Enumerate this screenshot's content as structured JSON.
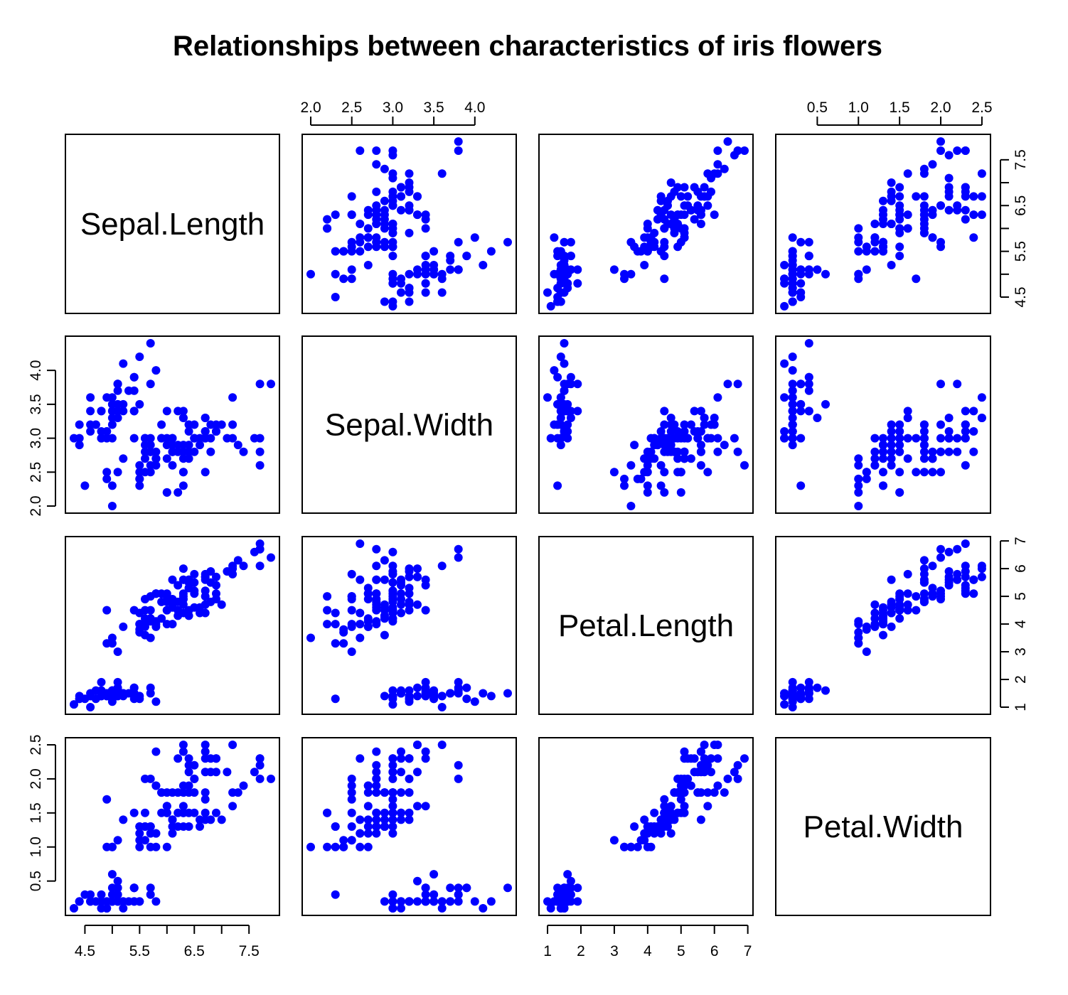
{
  "chart_data": {
    "type": "scatter",
    "title": "Relationships between characteristics of iris flowers",
    "variables": [
      "Sepal.Length",
      "Sepal.Width",
      "Petal.Length",
      "Petal.Width"
    ],
    "point_color": "#0000ff",
    "ticks": {
      "Sepal.Length": {
        "values": [
          4.5,
          5,
          5.5,
          6,
          6.5,
          7,
          7.5
        ],
        "labels": [
          "4.5",
          "",
          "5.5",
          "",
          "6.5",
          "",
          "7.5"
        ]
      },
      "Sepal.Width": {
        "values": [
          2,
          2.5,
          3,
          3.5,
          4
        ],
        "labels": [
          "2.0",
          "2.5",
          "3.0",
          "3.5",
          "4.0"
        ]
      },
      "Petal.Length": {
        "values": [
          1,
          2,
          3,
          4,
          5,
          6,
          7
        ],
        "labels": [
          "1",
          "2",
          "3",
          "4",
          "5",
          "6",
          "7"
        ]
      },
      "Petal.Width": {
        "values": [
          0.5,
          1.0,
          1.5,
          2.0,
          2.5
        ],
        "labels": [
          "0.5",
          "1.0",
          "1.5",
          "2.0",
          "2.5"
        ]
      }
    },
    "axis_ranges": {
      "Sepal.Length": [
        4.3,
        7.9
      ],
      "Sepal.Width": [
        2.0,
        4.4
      ],
      "Petal.Length": [
        1.0,
        6.9
      ],
      "Petal.Width": [
        0.1,
        2.5
      ]
    },
    "data_columns": [
      "Sepal.Length",
      "Sepal.Width",
      "Petal.Length",
      "Petal.Width"
    ],
    "data": [
      [
        5.1,
        3.5,
        1.4,
        0.2
      ],
      [
        4.9,
        3.0,
        1.4,
        0.2
      ],
      [
        4.7,
        3.2,
        1.3,
        0.2
      ],
      [
        4.6,
        3.1,
        1.5,
        0.2
      ],
      [
        5.0,
        3.6,
        1.4,
        0.2
      ],
      [
        5.4,
        3.9,
        1.7,
        0.4
      ],
      [
        4.6,
        3.4,
        1.4,
        0.3
      ],
      [
        5.0,
        3.4,
        1.5,
        0.2
      ],
      [
        4.4,
        2.9,
        1.4,
        0.2
      ],
      [
        4.9,
        3.1,
        1.5,
        0.1
      ],
      [
        5.4,
        3.7,
        1.5,
        0.2
      ],
      [
        4.8,
        3.4,
        1.6,
        0.2
      ],
      [
        4.8,
        3.0,
        1.4,
        0.1
      ],
      [
        4.3,
        3.0,
        1.1,
        0.1
      ],
      [
        5.8,
        4.0,
        1.2,
        0.2
      ],
      [
        5.7,
        4.4,
        1.5,
        0.4
      ],
      [
        5.4,
        3.9,
        1.3,
        0.4
      ],
      [
        5.1,
        3.5,
        1.4,
        0.3
      ],
      [
        5.7,
        3.8,
        1.7,
        0.3
      ],
      [
        5.1,
        3.8,
        1.5,
        0.3
      ],
      [
        5.4,
        3.4,
        1.7,
        0.2
      ],
      [
        5.1,
        3.7,
        1.5,
        0.4
      ],
      [
        4.6,
        3.6,
        1.0,
        0.2
      ],
      [
        5.1,
        3.3,
        1.7,
        0.5
      ],
      [
        4.8,
        3.4,
        1.9,
        0.2
      ],
      [
        5.0,
        3.0,
        1.6,
        0.2
      ],
      [
        5.0,
        3.4,
        1.6,
        0.4
      ],
      [
        5.2,
        3.5,
        1.5,
        0.2
      ],
      [
        5.2,
        3.4,
        1.4,
        0.2
      ],
      [
        4.7,
        3.2,
        1.6,
        0.2
      ],
      [
        4.8,
        3.1,
        1.6,
        0.2
      ],
      [
        5.4,
        3.4,
        1.5,
        0.4
      ],
      [
        5.2,
        4.1,
        1.5,
        0.1
      ],
      [
        5.5,
        4.2,
        1.4,
        0.2
      ],
      [
        4.9,
        3.1,
        1.5,
        0.2
      ],
      [
        5.0,
        3.2,
        1.2,
        0.2
      ],
      [
        5.5,
        3.5,
        1.3,
        0.2
      ],
      [
        4.9,
        3.6,
        1.4,
        0.1
      ],
      [
        4.4,
        3.0,
        1.3,
        0.2
      ],
      [
        5.1,
        3.4,
        1.5,
        0.2
      ],
      [
        5.0,
        3.5,
        1.3,
        0.3
      ],
      [
        4.5,
        2.3,
        1.3,
        0.3
      ],
      [
        4.4,
        3.2,
        1.3,
        0.2
      ],
      [
        5.0,
        3.5,
        1.6,
        0.6
      ],
      [
        5.1,
        3.8,
        1.9,
        0.4
      ],
      [
        4.8,
        3.0,
        1.4,
        0.3
      ],
      [
        5.1,
        3.8,
        1.6,
        0.2
      ],
      [
        4.6,
        3.2,
        1.4,
        0.2
      ],
      [
        5.3,
        3.7,
        1.5,
        0.2
      ],
      [
        5.0,
        3.3,
        1.4,
        0.2
      ],
      [
        7.0,
        3.2,
        4.7,
        1.4
      ],
      [
        6.4,
        3.2,
        4.5,
        1.5
      ],
      [
        6.9,
        3.1,
        4.9,
        1.5
      ],
      [
        5.5,
        2.3,
        4.0,
        1.3
      ],
      [
        6.5,
        2.8,
        4.6,
        1.5
      ],
      [
        5.7,
        2.8,
        4.5,
        1.3
      ],
      [
        6.3,
        3.3,
        4.7,
        1.6
      ],
      [
        4.9,
        2.4,
        3.3,
        1.0
      ],
      [
        6.6,
        2.9,
        4.6,
        1.3
      ],
      [
        5.2,
        2.7,
        3.9,
        1.4
      ],
      [
        5.0,
        2.0,
        3.5,
        1.0
      ],
      [
        5.9,
        3.0,
        4.2,
        1.5
      ],
      [
        6.0,
        2.2,
        4.0,
        1.0
      ],
      [
        6.1,
        2.9,
        4.7,
        1.4
      ],
      [
        5.6,
        2.9,
        3.6,
        1.3
      ],
      [
        6.7,
        3.1,
        4.4,
        1.4
      ],
      [
        5.6,
        3.0,
        4.5,
        1.5
      ],
      [
        5.8,
        2.7,
        4.1,
        1.0
      ],
      [
        6.2,
        2.2,
        4.5,
        1.5
      ],
      [
        5.6,
        2.5,
        3.9,
        1.1
      ],
      [
        5.9,
        3.2,
        4.8,
        1.8
      ],
      [
        6.1,
        2.8,
        4.0,
        1.3
      ],
      [
        6.3,
        2.5,
        4.9,
        1.5
      ],
      [
        6.1,
        2.8,
        4.7,
        1.2
      ],
      [
        6.4,
        2.9,
        4.3,
        1.3
      ],
      [
        6.6,
        3.0,
        4.4,
        1.4
      ],
      [
        6.8,
        2.8,
        4.8,
        1.4
      ],
      [
        6.7,
        3.0,
        5.0,
        1.7
      ],
      [
        6.0,
        2.9,
        4.5,
        1.5
      ],
      [
        5.7,
        2.6,
        3.5,
        1.0
      ],
      [
        5.5,
        2.4,
        3.8,
        1.1
      ],
      [
        5.5,
        2.4,
        3.7,
        1.0
      ],
      [
        5.8,
        2.7,
        3.9,
        1.2
      ],
      [
        6.0,
        2.7,
        5.1,
        1.6
      ],
      [
        5.4,
        3.0,
        4.5,
        1.5
      ],
      [
        6.0,
        3.4,
        4.5,
        1.6
      ],
      [
        6.7,
        3.1,
        4.7,
        1.5
      ],
      [
        6.3,
        2.3,
        4.4,
        1.3
      ],
      [
        5.6,
        3.0,
        4.1,
        1.3
      ],
      [
        5.5,
        2.5,
        4.0,
        1.3
      ],
      [
        5.5,
        2.6,
        4.4,
        1.2
      ],
      [
        6.1,
        3.0,
        4.6,
        1.4
      ],
      [
        5.8,
        2.6,
        4.0,
        1.2
      ],
      [
        5.0,
        2.3,
        3.3,
        1.0
      ],
      [
        5.6,
        2.7,
        4.2,
        1.3
      ],
      [
        5.7,
        3.0,
        4.2,
        1.2
      ],
      [
        5.7,
        2.9,
        4.2,
        1.3
      ],
      [
        6.2,
        2.9,
        4.3,
        1.3
      ],
      [
        5.1,
        2.5,
        3.0,
        1.1
      ],
      [
        5.7,
        2.8,
        4.1,
        1.3
      ],
      [
        6.3,
        3.3,
        6.0,
        2.5
      ],
      [
        5.8,
        2.7,
        5.1,
        1.9
      ],
      [
        7.1,
        3.0,
        5.9,
        2.1
      ],
      [
        6.3,
        2.9,
        5.6,
        1.8
      ],
      [
        6.5,
        3.0,
        5.8,
        2.2
      ],
      [
        7.6,
        3.0,
        6.6,
        2.1
      ],
      [
        4.9,
        2.5,
        4.5,
        1.7
      ],
      [
        7.3,
        2.9,
        6.3,
        1.8
      ],
      [
        6.7,
        2.5,
        5.8,
        1.8
      ],
      [
        7.2,
        3.6,
        6.1,
        2.5
      ],
      [
        6.5,
        3.2,
        5.1,
        2.0
      ],
      [
        6.4,
        2.7,
        5.3,
        1.9
      ],
      [
        6.8,
        3.0,
        5.5,
        2.1
      ],
      [
        5.7,
        2.5,
        5.0,
        2.0
      ],
      [
        5.8,
        2.8,
        5.1,
        2.4
      ],
      [
        6.4,
        3.2,
        5.3,
        2.3
      ],
      [
        6.5,
        3.0,
        5.5,
        1.8
      ],
      [
        7.7,
        3.8,
        6.7,
        2.2
      ],
      [
        7.7,
        2.6,
        6.9,
        2.3
      ],
      [
        6.0,
        2.2,
        5.0,
        1.5
      ],
      [
        6.9,
        3.2,
        5.7,
        2.3
      ],
      [
        5.6,
        2.8,
        4.9,
        2.0
      ],
      [
        7.7,
        2.8,
        6.7,
        2.0
      ],
      [
        6.3,
        2.7,
        4.9,
        1.8
      ],
      [
        6.7,
        3.3,
        5.7,
        2.1
      ],
      [
        7.2,
        3.2,
        6.0,
        1.8
      ],
      [
        6.2,
        2.8,
        4.8,
        1.8
      ],
      [
        6.1,
        3.0,
        4.9,
        1.8
      ],
      [
        6.4,
        2.8,
        5.6,
        2.1
      ],
      [
        7.2,
        3.0,
        5.8,
        1.6
      ],
      [
        7.4,
        2.8,
        6.1,
        1.9
      ],
      [
        7.9,
        3.8,
        6.4,
        2.0
      ],
      [
        6.4,
        2.8,
        5.6,
        2.2
      ],
      [
        6.3,
        2.8,
        5.1,
        1.5
      ],
      [
        6.1,
        2.6,
        5.6,
        1.4
      ],
      [
        7.7,
        3.0,
        6.1,
        2.3
      ],
      [
        6.3,
        3.4,
        5.6,
        2.4
      ],
      [
        6.4,
        3.1,
        5.5,
        1.8
      ],
      [
        6.0,
        3.0,
        4.8,
        1.8
      ],
      [
        6.9,
        3.1,
        5.4,
        2.1
      ],
      [
        6.7,
        3.1,
        5.6,
        2.4
      ],
      [
        6.9,
        3.1,
        5.1,
        2.3
      ],
      [
        5.8,
        2.7,
        5.1,
        1.9
      ],
      [
        6.8,
        3.2,
        5.9,
        2.3
      ],
      [
        6.7,
        3.3,
        5.7,
        2.5
      ],
      [
        6.7,
        3.0,
        5.2,
        2.3
      ],
      [
        6.3,
        2.5,
        5.0,
        1.9
      ],
      [
        6.5,
        3.0,
        5.2,
        2.0
      ],
      [
        6.2,
        3.4,
        5.4,
        2.3
      ],
      [
        5.9,
        3.0,
        5.1,
        1.8
      ]
    ]
  }
}
